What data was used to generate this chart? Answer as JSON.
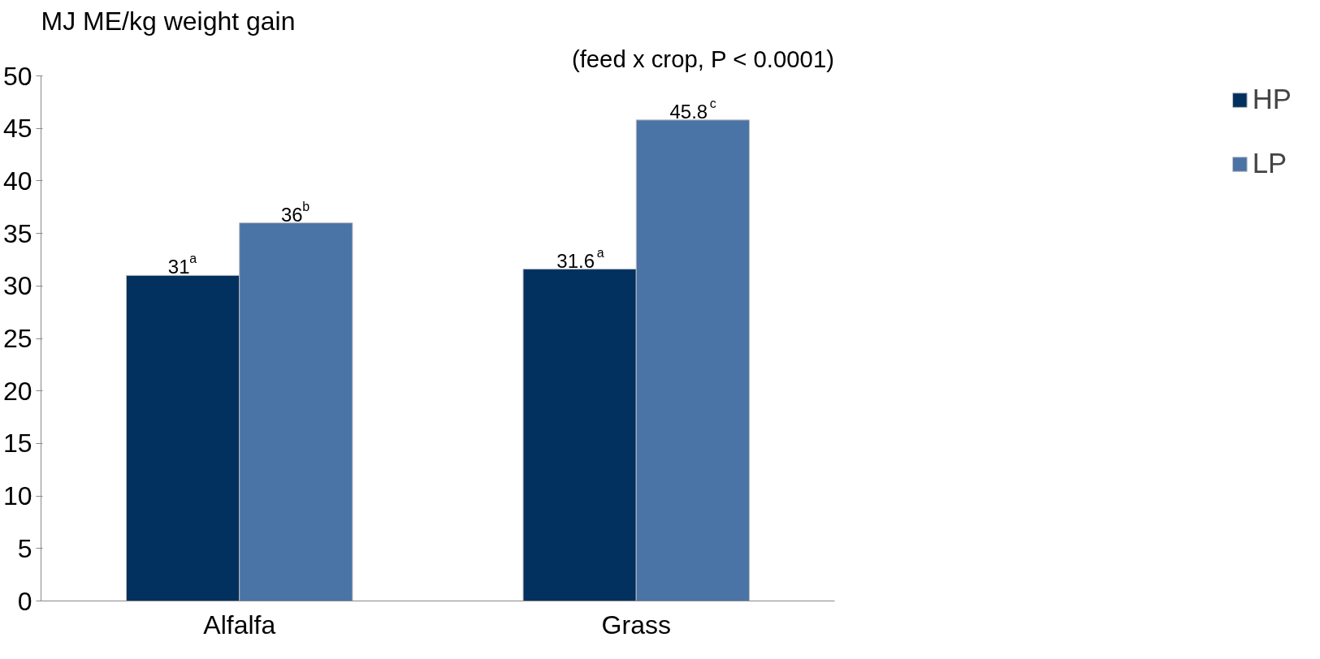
{
  "chart_data": {
    "type": "bar",
    "ylabel": "MJ ME/kg weight gain",
    "annotations": [
      "(feed x crop, P < 0.0001)"
    ],
    "categories": [
      "Alfalfa",
      "Grass"
    ],
    "series": [
      {
        "name": "HP",
        "color": "#02305f",
        "values": [
          31,
          31.6
        ],
        "value_labels": [
          "31$^{a}$",
          "31.6$^{a}$"
        ]
      },
      {
        "name": "LP",
        "color": "#4a73a6",
        "values": [
          36,
          45.8
        ],
        "value_labels": [
          "36$^{b}$",
          "45.8$^{c}$"
        ]
      }
    ],
    "ylim": [
      0,
      50
    ],
    "yticks": [
      0,
      5,
      10,
      15,
      20,
      25,
      30,
      35,
      40,
      45,
      50
    ],
    "grid": false,
    "legend": "right"
  }
}
